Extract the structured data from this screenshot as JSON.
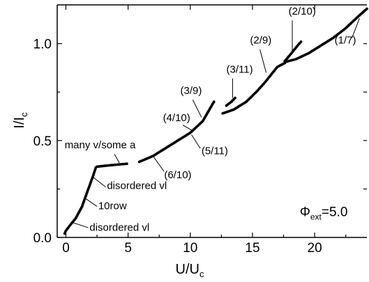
{
  "chart_data": {
    "type": "scatter",
    "xlabel": {
      "main": "U/U",
      "sub": "c"
    },
    "ylabel": {
      "main": "I/I",
      "sub": "c"
    },
    "xlim": [
      -0.7,
      24.2
    ],
    "ylim": [
      0.0,
      1.2
    ],
    "x_ticks": [
      0,
      5,
      10,
      15,
      20
    ],
    "x_tick_labels": [
      "0",
      "5",
      "10",
      "15",
      "20"
    ],
    "y_ticks": [
      0.0,
      0.5,
      1.0
    ],
    "y_tick_labels": [
      "0.0",
      "0.5",
      "1.0"
    ],
    "grid": false,
    "legend": "none",
    "marker_color": "#000000",
    "flux_label": {
      "symbol": "Φ",
      "sub": "ext",
      "value": "=5.0",
      "x": 18.8,
      "y": 0.11
    },
    "series": [
      {
        "segments": [
          [
            [
              -0.1,
              0.02
            ],
            [
              0.0,
              0.035
            ],
            [
              0.3,
              0.06
            ],
            [
              0.8,
              0.1
            ],
            [
              1.3,
              0.16
            ],
            [
              1.8,
              0.25
            ],
            [
              2.2,
              0.32
            ],
            [
              2.4,
              0.36
            ]
          ],
          [
            [
              2.5,
              0.365
            ],
            [
              3.2,
              0.37
            ],
            [
              4.0,
              0.375
            ],
            [
              4.9,
              0.38
            ]
          ],
          [
            [
              5.9,
              0.39
            ],
            [
              7.0,
              0.42
            ],
            [
              8.0,
              0.46
            ],
            [
              9.0,
              0.5
            ],
            [
              10.0,
              0.54
            ],
            [
              11.0,
              0.6
            ],
            [
              11.9,
              0.7
            ]
          ],
          [
            [
              12.9,
              0.68
            ],
            [
              13.3,
              0.7
            ],
            [
              13.6,
              0.72
            ]
          ],
          [
            [
              12.6,
              0.64
            ],
            [
              13.5,
              0.66
            ],
            [
              14.5,
              0.7
            ],
            [
              15.3,
              0.75
            ],
            [
              16.0,
              0.8
            ],
            [
              16.5,
              0.84
            ],
            [
              17.0,
              0.88
            ],
            [
              17.6,
              0.9
            ]
          ],
          [
            [
              17.6,
              0.91
            ],
            [
              18.0,
              0.94
            ],
            [
              18.5,
              0.98
            ],
            [
              18.9,
              1.01
            ]
          ],
          [
            [
              17.6,
              0.905
            ],
            [
              18.5,
              0.92
            ],
            [
              19.5,
              0.95
            ],
            [
              20.5,
              0.99
            ],
            [
              21.5,
              1.03
            ],
            [
              22.5,
              1.08
            ],
            [
              23.5,
              1.14
            ],
            [
              24.2,
              1.18
            ]
          ]
        ]
      }
    ],
    "annotations": [
      {
        "text": "many v/some a",
        "tx": -0.1,
        "ty": 0.46,
        "lx1": 3.9,
        "ly1": 0.43,
        "lx2": 4.3,
        "ly2": 0.385
      },
      {
        "text": "disordered vl",
        "tx": 3.3,
        "ty": 0.25,
        "lx1": 3.2,
        "ly1": 0.26,
        "lx2": 2.2,
        "ly2": 0.31
      },
      {
        "text": "10row",
        "tx": 2.6,
        "ty": 0.145,
        "lx1": 2.5,
        "ly1": 0.16,
        "lx2": 1.6,
        "ly2": 0.2
      },
      {
        "text": "disordered vl",
        "tx": 1.9,
        "ty": 0.035,
        "lx1": 1.8,
        "ly1": 0.05,
        "lx2": 0.4,
        "ly2": 0.08
      },
      {
        "text": "(6/10)",
        "tx": 7.9,
        "ty": 0.305,
        "lx1": 7.9,
        "ly1": 0.34,
        "lx2": 7.0,
        "ly2": 0.42
      },
      {
        "text": "(5/11)",
        "tx": 10.9,
        "ty": 0.43,
        "lx1": 10.8,
        "ly1": 0.46,
        "lx2": 10.1,
        "ly2": 0.53
      },
      {
        "text": "(4/10)",
        "tx": 7.8,
        "ty": 0.6,
        "lx1": 9.4,
        "ly1": 0.58,
        "lx2": 10.2,
        "ly2": 0.55
      },
      {
        "text": "(3/9)",
        "tx": 9.2,
        "ty": 0.74,
        "lx1": 10.2,
        "ly1": 0.71,
        "lx2": 10.9,
        "ly2": 0.62
      },
      {
        "text": "(3/11)",
        "tx": 12.9,
        "ty": 0.85,
        "lx1": 13.4,
        "ly1": 0.82,
        "lx2": 13.4,
        "ly2": 0.72
      },
      {
        "text": "(2/9)",
        "tx": 14.8,
        "ty": 1.0,
        "lx1": 15.6,
        "ly1": 0.97,
        "lx2": 16.1,
        "ly2": 0.85
      },
      {
        "text": "(2/10)",
        "tx": 17.9,
        "ty": 1.15,
        "lx1": 18.2,
        "ly1": 1.12,
        "lx2": 18.2,
        "ly2": 0.96
      },
      {
        "text": "(1/7)",
        "tx": 21.6,
        "ty": 1.0,
        "lx1": 23.0,
        "ly1": 1.03,
        "lx2": 23.6,
        "ly2": 1.13
      }
    ]
  }
}
